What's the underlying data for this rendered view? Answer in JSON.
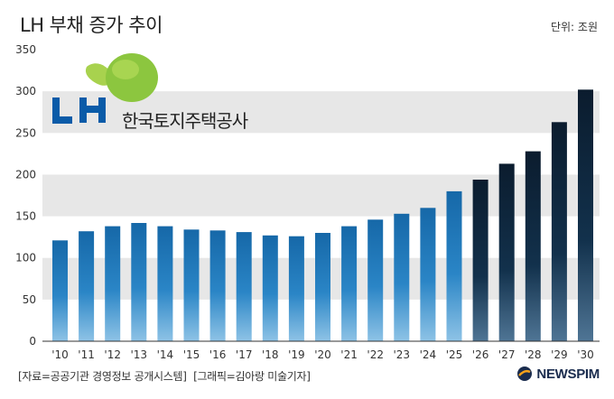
{
  "header": {
    "title": "LH 부채 증가 추이",
    "unit": "단위: 조원"
  },
  "logo": {
    "letters": "LH",
    "company": "한국토지주택공사"
  },
  "footer": {
    "source": "[자료=공공기관 경영정보 공개시스템]",
    "credit": "[그래픽=김아랑 미술기자]",
    "brand": "NEWSPIM"
  },
  "colors": {
    "actual_bar": "#1a6fb0",
    "forecast_bar": "#0d2236",
    "band": "#e7e7e7",
    "logo_green": "#8cc63f",
    "logo_blue": "#0a5ba8"
  },
  "chart_data": {
    "type": "bar",
    "categories": [
      "'10",
      "'11",
      "'12",
      "'13",
      "'14",
      "'15",
      "'16",
      "'17",
      "'18",
      "'19",
      "'20",
      "'21",
      "'22",
      "'23",
      "'24",
      "'25",
      "'26",
      "'27",
      "'28",
      "'29",
      "'30"
    ],
    "values": [
      121,
      132,
      138,
      142,
      138,
      134,
      133,
      131,
      127,
      126,
      130,
      138,
      146,
      153,
      160,
      180,
      194,
      213,
      228,
      263,
      302
    ],
    "forecast_from_index": 16,
    "ylim": [
      0,
      350
    ],
    "yticks": [
      0,
      50,
      100,
      150,
      200,
      250,
      300,
      350
    ],
    "grid": "alternating bands",
    "title": "LH 부채 증가 추이",
    "xlabel": "",
    "ylabel": ""
  }
}
